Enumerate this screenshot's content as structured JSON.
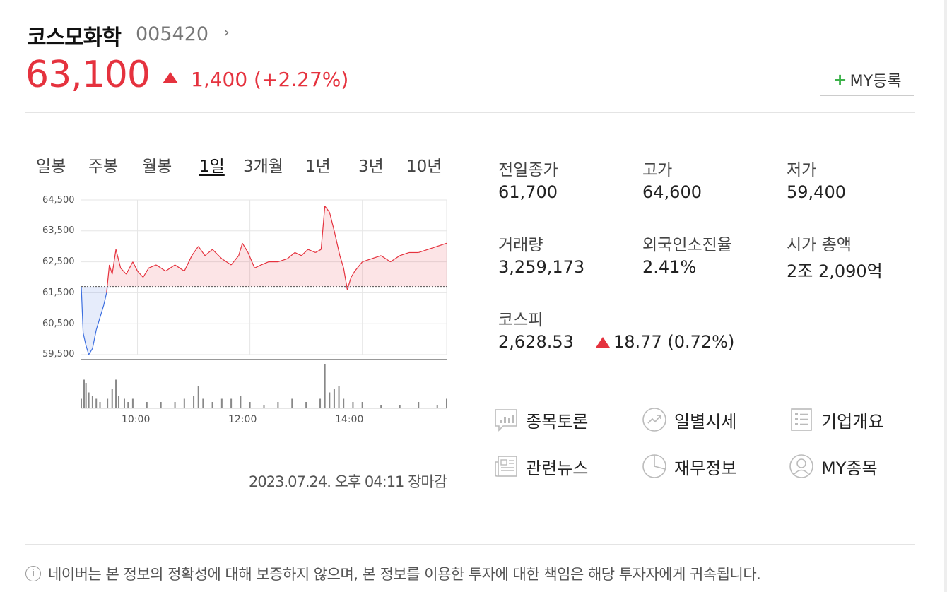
{
  "header": {
    "name": "코스모화학",
    "code": "005420",
    "price": "63,100",
    "change": "1,400 (+2.27%)",
    "my_button": "MY등록"
  },
  "tabs": [
    {
      "label": "일봉",
      "active": false
    },
    {
      "label": "주봉",
      "active": false
    },
    {
      "label": "월봉",
      "active": false
    },
    {
      "label": "1일",
      "active": true
    },
    {
      "label": "3개월",
      "active": false
    },
    {
      "label": "1년",
      "active": false
    },
    {
      "label": "3년",
      "active": false
    },
    {
      "label": "10년",
      "active": false
    }
  ],
  "chart_data": {
    "type": "line",
    "yticks": [
      "64,500",
      "63,500",
      "62,500",
      "61,500",
      "60,500",
      "59,500"
    ],
    "xticks": [
      "10:00",
      "12:00",
      "14:00"
    ],
    "ylim": [
      59500,
      64500
    ],
    "baseline": 61700,
    "colors": {
      "up": "#e5323e",
      "down": "#3d6fe0",
      "volume": "#888888"
    },
    "price_series": [
      [
        "09:00",
        61700
      ],
      [
        "09:02",
        60200
      ],
      [
        "09:05",
        59800
      ],
      [
        "09:08",
        59500
      ],
      [
        "09:12",
        59700
      ],
      [
        "09:16",
        60300
      ],
      [
        "09:20",
        60700
      ],
      [
        "09:24",
        61100
      ],
      [
        "09:27",
        61500
      ],
      [
        "09:30",
        62400
      ],
      [
        "09:33",
        62100
      ],
      [
        "09:37",
        62900
      ],
      [
        "09:42",
        62300
      ],
      [
        "09:48",
        62100
      ],
      [
        "09:55",
        62500
      ],
      [
        "10:00",
        62200
      ],
      [
        "10:06",
        62000
      ],
      [
        "10:12",
        62300
      ],
      [
        "10:20",
        62400
      ],
      [
        "10:30",
        62200
      ],
      [
        "10:40",
        62400
      ],
      [
        "10:50",
        62200
      ],
      [
        "10:58",
        62700
      ],
      [
        "11:05",
        63000
      ],
      [
        "11:12",
        62700
      ],
      [
        "11:20",
        62900
      ],
      [
        "11:30",
        62600
      ],
      [
        "11:40",
        62400
      ],
      [
        "11:48",
        62700
      ],
      [
        "11:52",
        63100
      ],
      [
        "11:58",
        62800
      ],
      [
        "12:05",
        62300
      ],
      [
        "12:12",
        62400
      ],
      [
        "12:20",
        62500
      ],
      [
        "12:30",
        62500
      ],
      [
        "12:40",
        62600
      ],
      [
        "12:48",
        62800
      ],
      [
        "12:55",
        62700
      ],
      [
        "13:02",
        62900
      ],
      [
        "13:10",
        62800
      ],
      [
        "13:16",
        62900
      ],
      [
        "13:20",
        64300
      ],
      [
        "13:25",
        64100
      ],
      [
        "13:30",
        63500
      ],
      [
        "13:36",
        62700
      ],
      [
        "13:40",
        62300
      ],
      [
        "13:44",
        61600
      ],
      [
        "13:48",
        62000
      ],
      [
        "13:52",
        62200
      ],
      [
        "14:00",
        62500
      ],
      [
        "14:10",
        62600
      ],
      [
        "14:20",
        62700
      ],
      [
        "14:30",
        62500
      ],
      [
        "14:40",
        62700
      ],
      [
        "14:50",
        62800
      ],
      [
        "15:00",
        62800
      ],
      [
        "15:10",
        62900
      ],
      [
        "15:20",
        63000
      ],
      [
        "15:30",
        63100
      ]
    ],
    "volume_series": [
      [
        "09:00",
        3
      ],
      [
        "09:03",
        9
      ],
      [
        "09:05",
        8
      ],
      [
        "09:08",
        5
      ],
      [
        "09:12",
        4
      ],
      [
        "09:16",
        3
      ],
      [
        "09:20",
        2
      ],
      [
        "09:28",
        3
      ],
      [
        "09:33",
        6
      ],
      [
        "09:37",
        9
      ],
      [
        "09:40",
        4
      ],
      [
        "09:46",
        3
      ],
      [
        "09:50",
        2
      ],
      [
        "09:55",
        3
      ],
      [
        "10:10",
        2
      ],
      [
        "10:25",
        2
      ],
      [
        "10:40",
        2
      ],
      [
        "10:50",
        3
      ],
      [
        "11:00",
        4
      ],
      [
        "11:05",
        7
      ],
      [
        "11:10",
        3
      ],
      [
        "11:20",
        2
      ],
      [
        "11:30",
        3
      ],
      [
        "11:40",
        3
      ],
      [
        "11:50",
        4
      ],
      [
        "12:00",
        2
      ],
      [
        "12:15",
        1
      ],
      [
        "12:30",
        2
      ],
      [
        "12:45",
        3
      ],
      [
        "13:00",
        2
      ],
      [
        "13:15",
        3
      ],
      [
        "13:20",
        14
      ],
      [
        "13:25",
        5
      ],
      [
        "13:30",
        6
      ],
      [
        "13:35",
        7
      ],
      [
        "13:40",
        3
      ],
      [
        "13:50",
        2
      ],
      [
        "14:00",
        2
      ],
      [
        "14:20",
        1
      ],
      [
        "14:40",
        1
      ],
      [
        "15:00",
        2
      ],
      [
        "15:20",
        1
      ],
      [
        "15:30",
        3
      ]
    ]
  },
  "timestamp": "2023.07.24. 오후 04:11 장마감",
  "stats": [
    {
      "label": "전일종가",
      "value": "61,700",
      "color": "#222222"
    },
    {
      "label": "고가",
      "value": "64,600",
      "color": "#e5323e"
    },
    {
      "label": "저가",
      "value": "59,400",
      "color": "#222222"
    },
    {
      "label": "거래량",
      "value": "3,259,173",
      "color": "#222222"
    },
    {
      "label": "외국인소진율",
      "value": "2.41%",
      "color": "#222222"
    },
    {
      "label": "시가 총액",
      "value": "2조 2,090억",
      "color": "#222222"
    }
  ],
  "kospi": {
    "label": "코스피",
    "value": "2,628.53",
    "change": "18.77 (0.72%)"
  },
  "links": [
    {
      "label": "종목토론",
      "icon": "chart-bubble-icon"
    },
    {
      "label": "일별시세",
      "icon": "trend-icon"
    },
    {
      "label": "기업개요",
      "icon": "list-icon"
    },
    {
      "label": "관련뉴스",
      "icon": "newspaper-icon"
    },
    {
      "label": "재무정보",
      "icon": "pie-icon"
    },
    {
      "label": "MY종목",
      "icon": "user-icon"
    }
  ],
  "disclaimer": "네이버는 본 정보의 정확성에 대해 보증하지 않으며, 본 정보를 이용한 투자에 대한 책임은 해당 투자자에게 귀속됩니다."
}
